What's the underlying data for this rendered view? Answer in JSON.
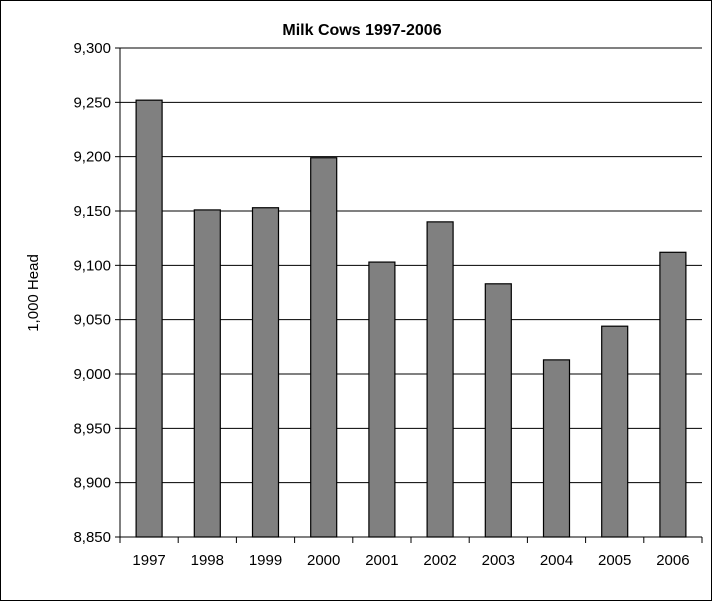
{
  "chart_data": {
    "type": "bar",
    "title": "Milk Cows 1997-2006",
    "xlabel": "",
    "ylabel": "1,000 Head",
    "categories": [
      "1997",
      "1998",
      "1999",
      "2000",
      "2001",
      "2002",
      "2003",
      "2004",
      "2005",
      "2006"
    ],
    "values": [
      9252,
      9151,
      9153,
      9199,
      9103,
      9140,
      9083,
      9013,
      9044,
      9112
    ],
    "ylim": [
      8850,
      9300
    ],
    "yticks": [
      8850,
      8900,
      8950,
      9000,
      9050,
      9100,
      9150,
      9200,
      9250,
      9300
    ],
    "ytick_labels": [
      "8,850",
      "8,900",
      "8,950",
      "9,000",
      "9,050",
      "9,100",
      "9,150",
      "9,200",
      "9,250",
      "9,300"
    ],
    "grid": true,
    "legend": "none",
    "colors": {
      "bar_fill": "#808080",
      "bar_stroke": "#000000",
      "gridline": "#000000"
    }
  }
}
